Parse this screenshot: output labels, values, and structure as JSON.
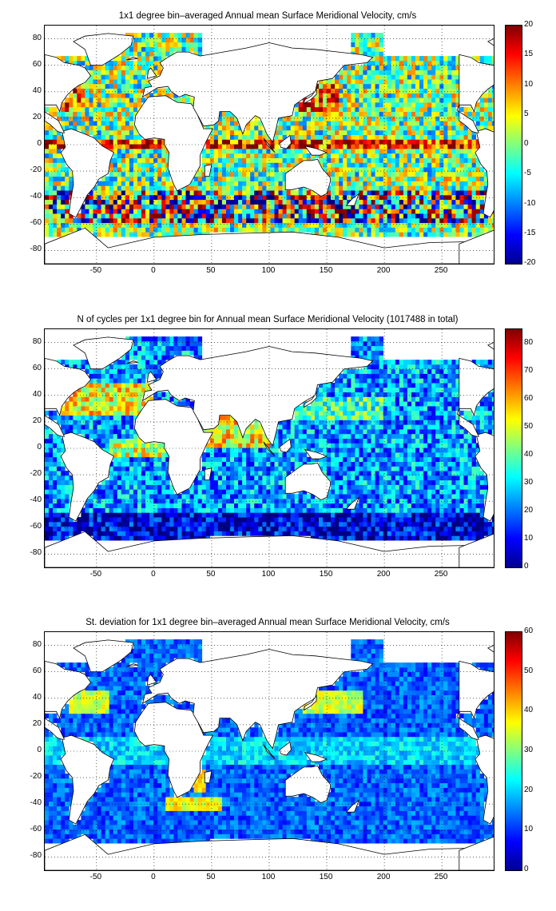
{
  "colors": {
    "land": "#ffffff",
    "coast": "#000000",
    "grid": "#000000",
    "colormap": "jet"
  },
  "axes": {
    "x_ticks": [
      "-50",
      "0",
      "50",
      "100",
      "150",
      "200",
      "250"
    ],
    "y_ticks": [
      "80",
      "60",
      "40",
      "20",
      "0",
      "-20",
      "-40",
      "-60",
      "-80"
    ]
  },
  "panels": [
    {
      "title": "1x1 degree bin–averaged Annual mean Surface Meridional Velocity, cm/s",
      "colorbar_ticks": [
        "20",
        "15",
        "10",
        "5",
        "0",
        "-5",
        "-10",
        "-15",
        "-20"
      ],
      "colorbar_range": [
        -20,
        20
      ],
      "field": "velocity"
    },
    {
      "title": "N of cycles per 1x1 degree bin for Annual mean Surface Meridional Velocity (1017488 in total)",
      "colorbar_ticks": [
        "80",
        "70",
        "60",
        "50",
        "40",
        "30",
        "20",
        "10",
        "0"
      ],
      "colorbar_range": [
        0,
        85
      ],
      "field": "count"
    },
    {
      "title": "St. deviation for 1x1 degree bin–averaged Annual mean Surface Meridional Velocity, cm/s",
      "colorbar_ticks": [
        "60",
        "50",
        "40",
        "30",
        "20",
        "10",
        "0"
      ],
      "colorbar_range": [
        0,
        60
      ],
      "field": "stdev"
    }
  ]
}
